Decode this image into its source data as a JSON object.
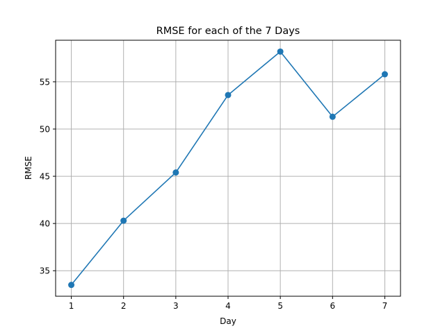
{
  "chart_data": {
    "type": "line",
    "title": "RMSE for each of the 7 Days",
    "xlabel": "Day",
    "ylabel": "RMSE",
    "x": [
      1,
      2,
      3,
      4,
      5,
      6,
      7
    ],
    "series": [
      {
        "values": [
          33.5,
          40.3,
          45.4,
          53.6,
          58.2,
          51.3,
          55.8
        ]
      }
    ],
    "xlim": [
      0.7,
      7.3
    ],
    "ylim": [
      32.3,
      59.4
    ],
    "xticks": [
      1,
      2,
      3,
      4,
      5,
      6,
      7
    ],
    "yticks": [
      35,
      40,
      45,
      50,
      55
    ],
    "grid": true,
    "marker": "circle",
    "color": "#1f77b4"
  }
}
